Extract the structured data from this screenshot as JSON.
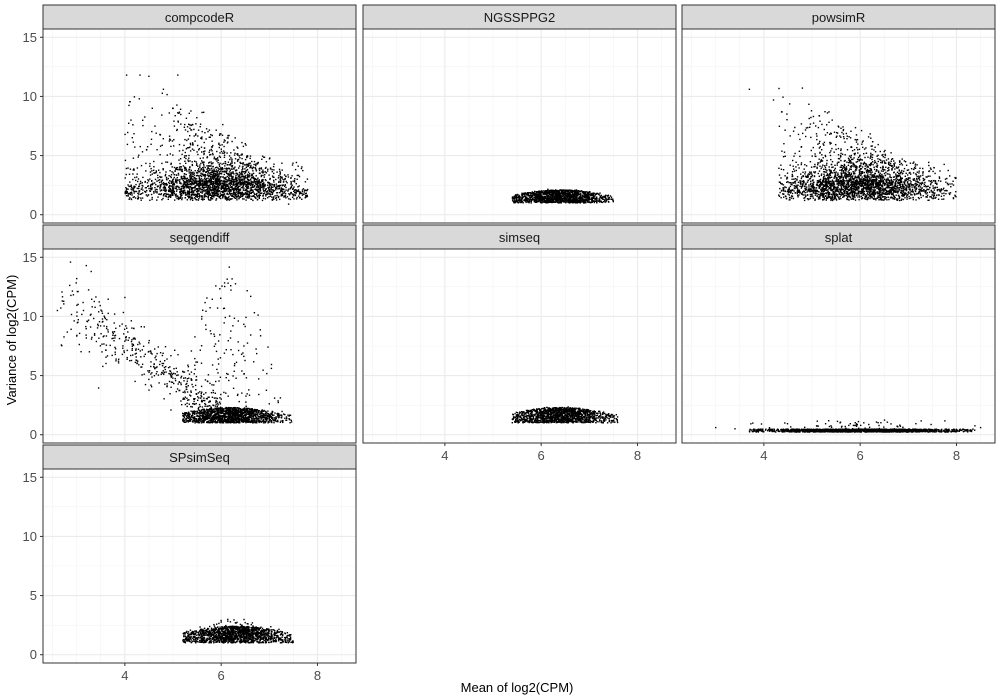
{
  "chart_data": {
    "type": "scatter",
    "layout": "facet_wrap",
    "ncol": 3,
    "xlabel": "Mean of log2(CPM)",
    "ylabel": "Variance of log2(CPM)",
    "xlim": [
      2.3,
      8.8
    ],
    "ylim": [
      -0.7,
      15.7
    ],
    "x_ticks": [
      4,
      6,
      8
    ],
    "y_ticks": [
      0,
      5,
      10,
      15
    ],
    "grid": true,
    "point_color": "#000000",
    "strip_fill": "#d9d9d9",
    "panels": [
      {
        "name": "compcodeR",
        "shape": "fan",
        "x_range": [
          4.0,
          7.8
        ],
        "x_center": 5.9,
        "base_var": 1.2,
        "band_height": 1.7,
        "max_var": 11.8,
        "n_points": 2600,
        "outliers": [
          [
            4.5,
            11.7
          ],
          [
            5.1,
            11.8
          ],
          [
            4.8,
            10.6
          ],
          [
            7.6,
            4.1
          ],
          [
            7.4,
            0.9
          ],
          [
            4.3,
            9.8
          ]
        ]
      },
      {
        "name": "NGSSPPG2",
        "shape": "band",
        "x_range": [
          5.4,
          7.5
        ],
        "x_center": 6.4,
        "base_var": 1.0,
        "band_height": 1.1,
        "max_var": 2.3,
        "n_points": 1400,
        "outliers": []
      },
      {
        "name": "powsimR",
        "shape": "fan",
        "x_range": [
          4.3,
          8.0
        ],
        "x_center": 6.0,
        "base_var": 1.2,
        "band_height": 1.7,
        "max_var": 10.7,
        "n_points": 2600,
        "outliers": [
          [
            3.7,
            10.6
          ],
          [
            4.8,
            10.7
          ],
          [
            4.2,
            9.7
          ],
          [
            7.7,
            1.3
          ]
        ]
      },
      {
        "name": "seqgendiff",
        "shape": "tail",
        "x_range": [
          5.2,
          7.5
        ],
        "x_center": 6.2,
        "base_var": 1.0,
        "band_height": 1.3,
        "tail_x_range": [
          2.6,
          6.0
        ],
        "max_var": 14.3,
        "n_points": 1600,
        "n_tail": 450,
        "outliers": [
          [
            3.2,
            14.3
          ],
          [
            3.3,
            13.8
          ],
          [
            3.0,
            13.2
          ],
          [
            2.7,
            11.3
          ],
          [
            2.6,
            10.5
          ],
          [
            4.0,
            11.6
          ]
        ]
      },
      {
        "name": "simseq",
        "shape": "band",
        "x_range": [
          5.4,
          7.6
        ],
        "x_center": 6.4,
        "base_var": 1.0,
        "band_height": 1.3,
        "max_var": 2.4,
        "n_points": 1400,
        "outliers": []
      },
      {
        "name": "splat",
        "shape": "flat",
        "x_range": [
          3.7,
          8.4
        ],
        "x_center": 6.0,
        "base_var": 0.35,
        "band_height": 0.25,
        "max_var": 1.3,
        "n_points": 1800,
        "outliers": [
          [
            3.0,
            0.6
          ],
          [
            3.4,
            0.5
          ],
          [
            8.5,
            0.6
          ]
        ]
      },
      {
        "name": "SPsimSeq",
        "shape": "band",
        "x_range": [
          5.2,
          7.5
        ],
        "x_center": 6.3,
        "base_var": 1.0,
        "band_height": 1.4,
        "max_var": 3.3,
        "n_points": 1500,
        "outliers": []
      }
    ]
  }
}
